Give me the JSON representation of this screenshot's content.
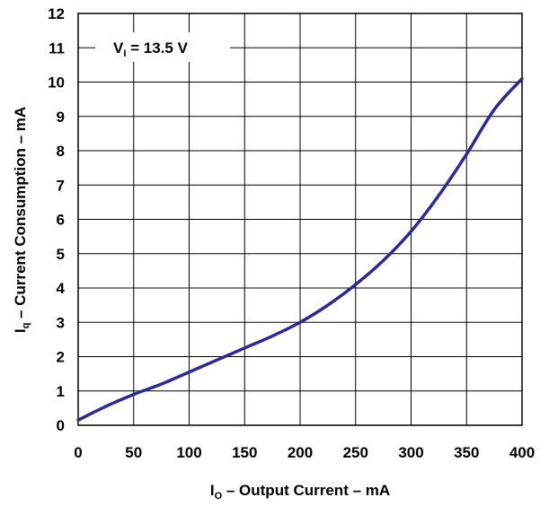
{
  "chart_data": {
    "type": "line",
    "title": "",
    "xlabel": {
      "main": "I",
      "sub": "O",
      "rest": " – Output Current – mA"
    },
    "ylabel": {
      "main": "I",
      "sub": "q",
      "rest": " – Current Consumption – mA"
    },
    "xlim": [
      0,
      400
    ],
    "ylim": [
      0,
      12
    ],
    "xticks": [
      0,
      50,
      100,
      150,
      200,
      250,
      300,
      350,
      400
    ],
    "yticks": [
      0,
      1,
      2,
      3,
      4,
      5,
      6,
      7,
      8,
      9,
      10,
      11,
      12
    ],
    "grid": true,
    "annotation": {
      "main": "V",
      "sub": "I",
      "rest": " = 13.5 V"
    },
    "series": [
      {
        "color": "#2b2b8c",
        "x": [
          0,
          25,
          50,
          75,
          100,
          125,
          150,
          175,
          200,
          225,
          250,
          275,
          300,
          325,
          350,
          375,
          400
        ],
        "y": [
          0.15,
          0.55,
          0.9,
          1.2,
          1.55,
          1.9,
          2.25,
          2.6,
          3.0,
          3.5,
          4.1,
          4.8,
          5.65,
          6.7,
          7.9,
          9.2,
          10.1
        ]
      }
    ]
  }
}
